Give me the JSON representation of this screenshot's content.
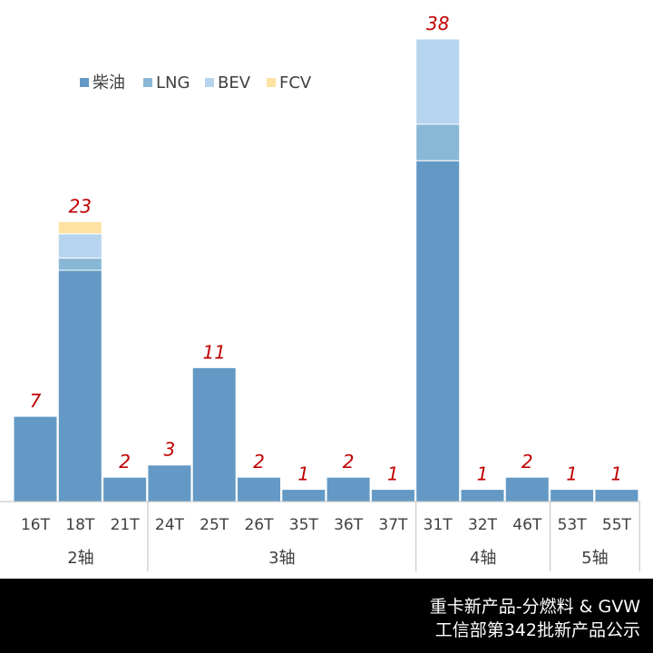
{
  "chart_data": {
    "type": "bar",
    "stacked": true,
    "title": "",
    "xlabel": "",
    "ylabel": "",
    "ylim": [
      0,
      38
    ],
    "grid": false,
    "legend_position": "top-left",
    "categories": [
      "16T",
      "18T",
      "21T",
      "24T",
      "25T",
      "26T",
      "35T",
      "36T",
      "37T",
      "31T",
      "32T",
      "46T",
      "53T",
      "55T"
    ],
    "groups": [
      {
        "label": "2轴",
        "categories": [
          "16T",
          "18T",
          "21T"
        ]
      },
      {
        "label": "3轴",
        "categories": [
          "24T",
          "25T",
          "26T",
          "35T",
          "36T",
          "37T"
        ]
      },
      {
        "label": "4轴",
        "categories": [
          "31T",
          "32T",
          "46T"
        ]
      },
      {
        "label": "5轴",
        "categories": [
          "53T",
          "55T"
        ]
      }
    ],
    "series": [
      {
        "name": "柴油",
        "color": "#6399C4",
        "values": [
          7,
          19,
          2,
          3,
          11,
          2,
          1,
          2,
          1,
          28,
          1,
          2,
          1,
          1
        ]
      },
      {
        "name": "LNG",
        "color": "#89B7D6",
        "values": [
          0,
          1,
          0,
          0,
          0,
          0,
          0,
          0,
          0,
          3,
          0,
          0,
          0,
          0
        ]
      },
      {
        "name": "BEV",
        "color": "#B6D4EE",
        "values": [
          0,
          2,
          0,
          0,
          0,
          0,
          0,
          0,
          0,
          7,
          0,
          0,
          0,
          0
        ]
      },
      {
        "name": "FCV",
        "color": "#FDE2A1",
        "values": [
          0,
          1,
          0,
          0,
          0,
          0,
          0,
          0,
          0,
          0,
          0,
          0,
          0,
          0
        ]
      }
    ],
    "totals": [
      7,
      23,
      2,
      3,
      11,
      2,
      1,
      2,
      1,
      38,
      1,
      2,
      1,
      1
    ],
    "total_label_color": "#C00000"
  },
  "footer": {
    "line1": "重卡新产品-分燃料 & GVW",
    "line2": "工信部第342批新产品公示"
  }
}
